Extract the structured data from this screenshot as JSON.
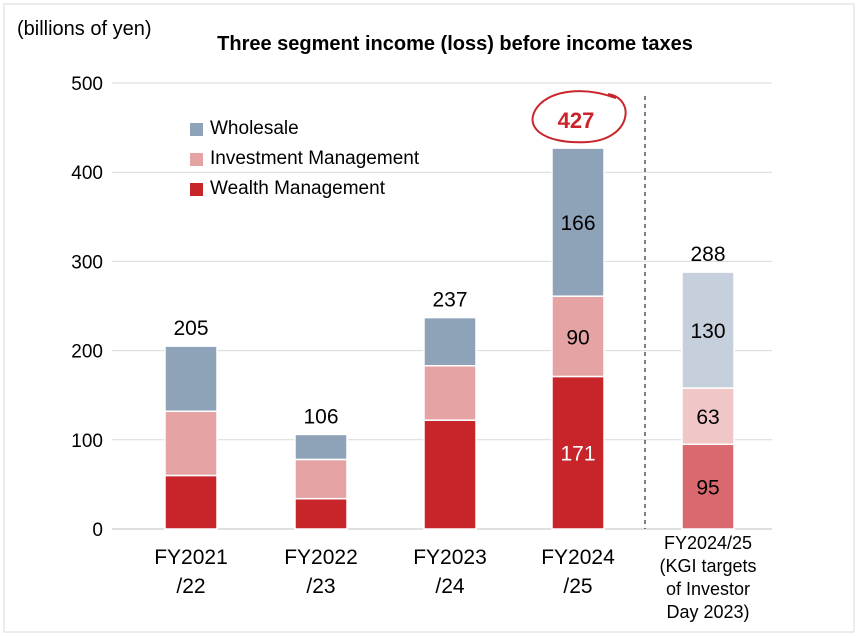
{
  "chart_data": {
    "type": "bar",
    "stacked": true,
    "title": "Three segment income (loss) before income taxes",
    "unit_label": "(billions of yen)",
    "ylim": [
      0,
      500
    ],
    "yticks": [
      0,
      100,
      200,
      300,
      400,
      500
    ],
    "grid": true,
    "legend_position": "top-left",
    "categories": [
      [
        "FY2021",
        "/22"
      ],
      [
        "FY2022",
        "/23"
      ],
      [
        "FY2023",
        "/24"
      ],
      [
        "FY2024",
        "/25"
      ],
      [
        "FY2024/25",
        "(KGI targets",
        "of Investor",
        "Day 2023)"
      ]
    ],
    "series": [
      {
        "name": "Wealth Management",
        "color": "#c8252b",
        "target_color": "#d9696e",
        "values": [
          60,
          34,
          122,
          171,
          95
        ],
        "labels": [
          "",
          "",
          "",
          "171",
          "95"
        ]
      },
      {
        "name": "Investment Management",
        "color": "#e6a3a3",
        "target_color": "#f0c6c6",
        "values": [
          72,
          44,
          61,
          90,
          63
        ],
        "labels": [
          "",
          "",
          "",
          "90",
          "63"
        ]
      },
      {
        "name": "Wholesale",
        "color": "#8ea2b8",
        "target_color": "#c6d0dc",
        "values": [
          73,
          28,
          54,
          166,
          130
        ],
        "labels": [
          "",
          "",
          "",
          "166",
          "130"
        ]
      }
    ],
    "totals": [
      205,
      106,
      237,
      427,
      288
    ],
    "highlighted_total": {
      "index": 3,
      "color": "#c8252b"
    },
    "target_category_index": 4
  }
}
